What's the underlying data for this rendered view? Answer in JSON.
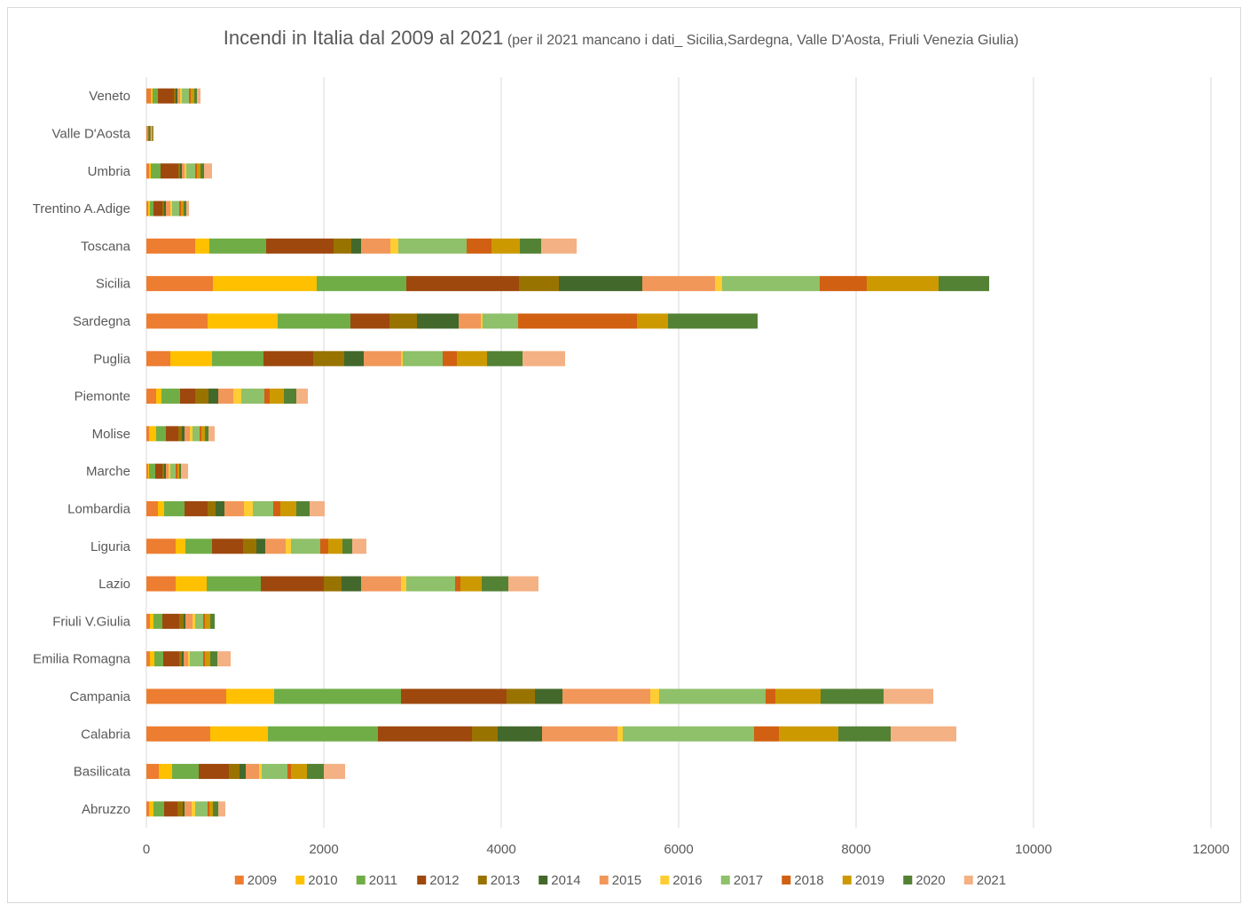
{
  "chart_data": {
    "type": "bar",
    "orientation": "horizontal",
    "stacked": true,
    "title": "Incendi in Italia dal 2009 al 2021",
    "subtitle": "(per il 2021 mancano i dati_ Sicilia,Sardegna, Valle D'Aosta, Friuli Venezia Giulia)",
    "xlim": [
      0,
      12000
    ],
    "xticks": [
      "0",
      "2000",
      "4000",
      "6000",
      "8000",
      "10000",
      "12000"
    ],
    "xtick_values": [
      0,
      2000,
      4000,
      6000,
      8000,
      10000,
      12000
    ],
    "grid": "vertical",
    "legend_position": "bottom",
    "categories": [
      "Veneto",
      "Valle D'Aosta",
      "Umbria",
      "Trentino A.Adige",
      "Toscana",
      "Sicilia",
      "Sardegna",
      "Puglia",
      "Piemonte",
      "Molise",
      "Marche",
      "Lombardia",
      "Liguria",
      "Lazio",
      "Friuli V.Giulia",
      "Emilia Romagna",
      "Campania",
      "Calabria",
      "Basilicata",
      "Abruzzo"
    ],
    "series": [
      {
        "name": "2009",
        "color": "#ED7D31",
        "values": [
          50,
          10,
          30,
          20,
          550,
          750,
          690,
          270,
          110,
          30,
          20,
          130,
          330,
          330,
          40,
          40,
          900,
          720,
          140,
          30
        ]
      },
      {
        "name": "2010",
        "color": "#FFC000",
        "values": [
          20,
          5,
          20,
          20,
          160,
          1170,
          790,
          470,
          60,
          80,
          10,
          70,
          110,
          350,
          40,
          50,
          540,
          650,
          150,
          50
        ]
      },
      {
        "name": "2011",
        "color": "#70AD47",
        "values": [
          60,
          10,
          110,
          40,
          640,
          1010,
          820,
          580,
          210,
          110,
          70,
          230,
          300,
          610,
          100,
          100,
          1430,
          1240,
          300,
          120
        ]
      },
      {
        "name": "2012",
        "color": "#9E480E",
        "values": [
          180,
          10,
          200,
          100,
          760,
          1270,
          440,
          560,
          170,
          140,
          80,
          260,
          350,
          710,
          190,
          180,
          1190,
          1060,
          340,
          150
        ]
      },
      {
        "name": "2013",
        "color": "#997300",
        "values": [
          20,
          5,
          20,
          20,
          200,
          450,
          310,
          350,
          150,
          40,
          20,
          90,
          150,
          200,
          50,
          30,
          320,
          290,
          120,
          60
        ]
      },
      {
        "name": "2014",
        "color": "#43682B",
        "values": [
          20,
          5,
          20,
          20,
          110,
          940,
          470,
          220,
          110,
          30,
          20,
          100,
          100,
          220,
          20,
          20,
          310,
          500,
          70,
          20
        ]
      },
      {
        "name": "2015",
        "color": "#F1975A",
        "values": [
          30,
          5,
          30,
          50,
          330,
          820,
          250,
          420,
          170,
          60,
          30,
          220,
          230,
          450,
          80,
          50,
          990,
          850,
          150,
          80
        ]
      },
      {
        "name": "2016",
        "color": "#FFCD33",
        "values": [
          20,
          5,
          20,
          20,
          90,
          80,
          20,
          20,
          90,
          30,
          20,
          100,
          60,
          60,
          30,
          20,
          100,
          60,
          30,
          40
        ]
      },
      {
        "name": "2017",
        "color": "#8FC06A",
        "values": [
          80,
          10,
          100,
          80,
          770,
          1100,
          400,
          450,
          260,
          80,
          60,
          230,
          330,
          550,
          90,
          150,
          1200,
          1480,
          290,
          140
        ]
      },
      {
        "name": "2018",
        "color": "#D26012",
        "values": [
          20,
          5,
          20,
          20,
          280,
          530,
          1340,
          160,
          60,
          20,
          20,
          80,
          90,
          60,
          20,
          20,
          110,
          280,
          40,
          20
        ]
      },
      {
        "name": "2019",
        "color": "#CC9A00",
        "values": [
          40,
          5,
          40,
          30,
          320,
          810,
          350,
          340,
          160,
          40,
          20,
          180,
          160,
          240,
          60,
          60,
          510,
          670,
          180,
          40
        ]
      },
      {
        "name": "2020",
        "color": "#548235",
        "values": [
          30,
          5,
          40,
          30,
          240,
          570,
          1010,
          400,
          140,
          40,
          20,
          150,
          110,
          300,
          50,
          80,
          710,
          590,
          190,
          60
        ]
      },
      {
        "name": "2021",
        "color": "#F4B183",
        "values": [
          40,
          0,
          90,
          30,
          400,
          0,
          0,
          480,
          130,
          70,
          80,
          170,
          160,
          340,
          0,
          150,
          560,
          740,
          240,
          80
        ]
      }
    ]
  }
}
